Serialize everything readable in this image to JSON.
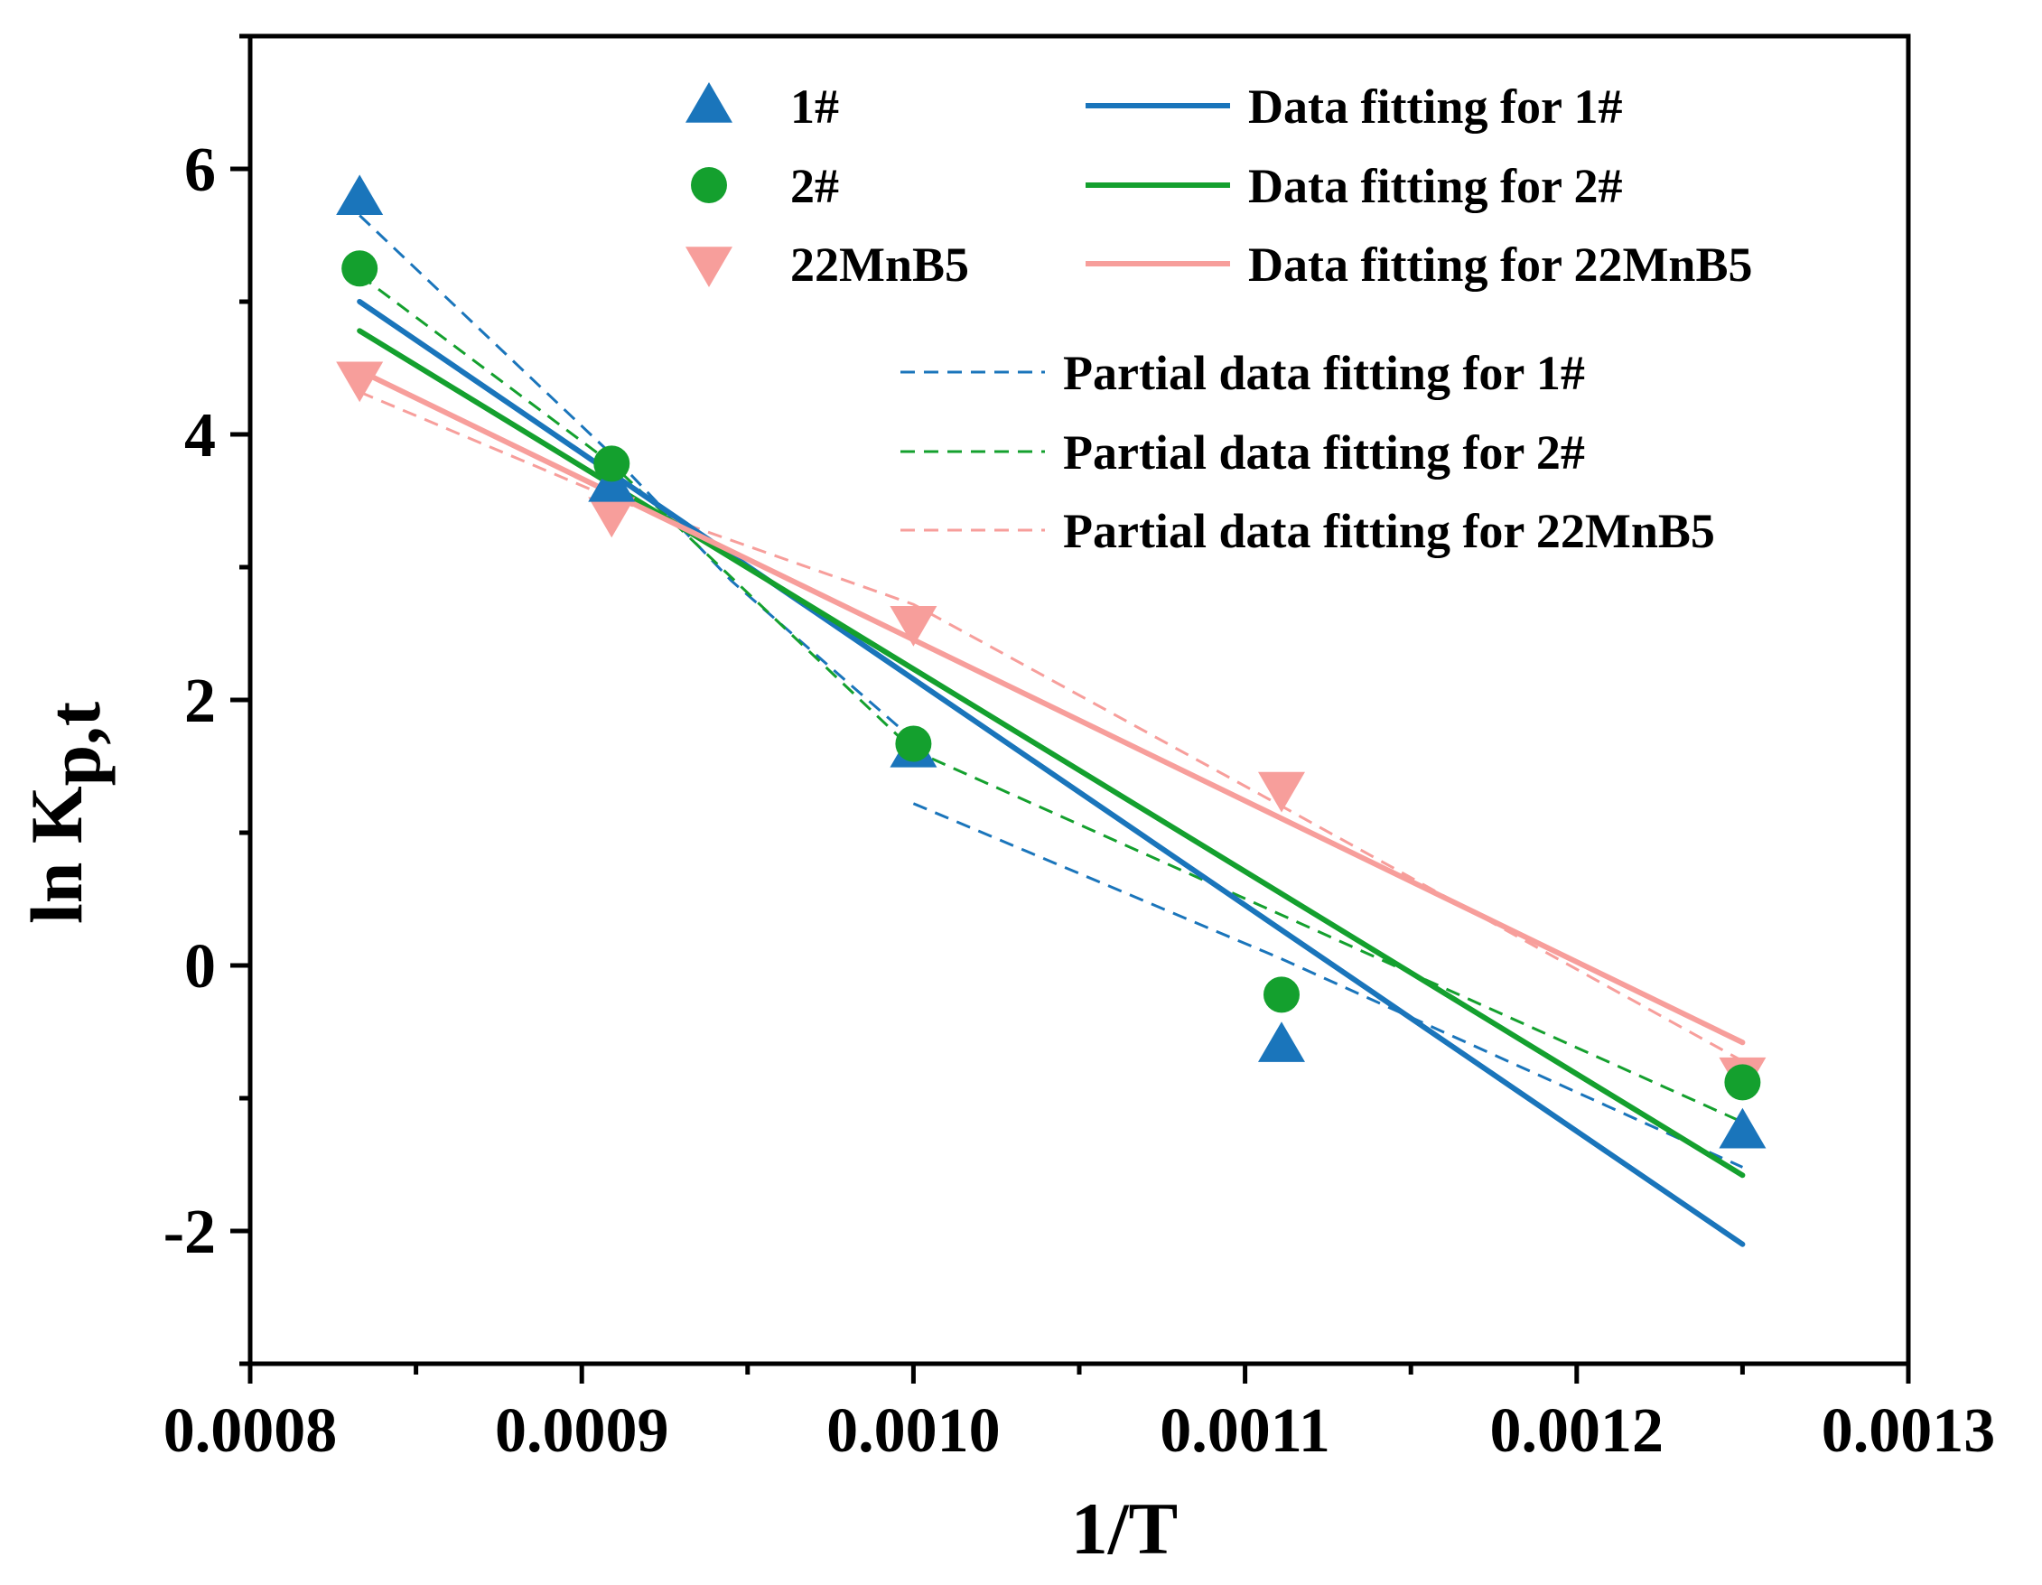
{
  "chart_data": {
    "type": "scatter",
    "title": "",
    "xlabel": "1/T",
    "ylabel_main": "ln K",
    "ylabel_sub": "p,t",
    "xlim": [
      0.0008,
      0.0013
    ],
    "ylim": [
      -3,
      7
    ],
    "x_ticks": [
      0.0008,
      0.0009,
      0.001,
      0.0011,
      0.0012,
      0.0013
    ],
    "x_tick_labels": [
      "0.0008",
      "0.0009",
      "0.0010",
      "0.0011",
      "0.0012",
      "0.0013"
    ],
    "y_ticks": [
      -2,
      0,
      2,
      4,
      6
    ],
    "y_tick_labels": [
      "-2",
      "0",
      "2",
      "4",
      "6"
    ],
    "colors": {
      "s1": "#1a75bb",
      "s2": "#14a02e",
      "s3": "#f79e9b"
    },
    "series": [
      {
        "name": "1#",
        "color_key": "s1",
        "marker": "triangle-up",
        "x": [
          0.000833,
          0.000909,
          0.001,
          0.001111,
          0.00125
        ],
        "y": [
          5.78,
          3.62,
          1.62,
          -0.6,
          -1.25
        ]
      },
      {
        "name": "2#",
        "color_key": "s2",
        "marker": "circle",
        "x": [
          0.000833,
          0.000909,
          0.001,
          0.001111,
          0.00125
        ],
        "y": [
          5.25,
          3.78,
          1.67,
          -0.22,
          -0.88
        ]
      },
      {
        "name": "22MnB5",
        "color_key": "s3",
        "marker": "triangle-down",
        "x": [
          0.000833,
          0.000909,
          0.001,
          0.001111,
          0.00125
        ],
        "y": [
          4.42,
          3.4,
          2.58,
          1.33,
          -0.82
        ]
      }
    ],
    "fits": [
      {
        "name": "Data fitting for 1#",
        "color_key": "s1",
        "style": "solid",
        "points": [
          [
            0.000833,
            5.0
          ],
          [
            0.00125,
            -2.1
          ]
        ]
      },
      {
        "name": "Data fitting for 2#",
        "color_key": "s2",
        "style": "solid",
        "points": [
          [
            0.000833,
            4.78
          ],
          [
            0.00125,
            -1.58
          ]
        ]
      },
      {
        "name": "Data fitting for 22MnB5",
        "color_key": "s3",
        "style": "solid",
        "points": [
          [
            0.000833,
            4.48
          ],
          [
            0.00125,
            -0.58
          ]
        ]
      }
    ],
    "partial_fits": [
      {
        "name": "Partial data fitting for 1#",
        "color_key": "s1",
        "style": "dashed",
        "segments": [
          [
            [
              0.000833,
              5.65
            ],
            [
              0.000909,
              3.85
            ],
            [
              0.000945,
              2.9
            ],
            [
              0.001,
              1.7
            ]
          ],
          [
            [
              0.001,
              1.22
            ],
            [
              0.001111,
              0.05
            ],
            [
              0.00125,
              -1.52
            ]
          ]
        ]
      },
      {
        "name": "Partial data fitting for 2#",
        "color_key": "s2",
        "style": "dashed",
        "segments": [
          [
            [
              0.000833,
              5.2
            ],
            [
              0.000909,
              3.78
            ],
            [
              0.001,
              1.62
            ],
            [
              0.001111,
              0.38
            ],
            [
              0.00125,
              -1.18
            ]
          ]
        ]
      },
      {
        "name": "Partial data fitting for 22MnB5",
        "color_key": "s3",
        "style": "dashed",
        "segments": [
          [
            [
              0.000833,
              4.32
            ],
            [
              0.000909,
              3.52
            ],
            [
              0.001,
              2.72
            ],
            [
              0.001111,
              1.2
            ],
            [
              0.00125,
              -0.72
            ]
          ]
        ]
      }
    ],
    "legend": {
      "placement": "top-right",
      "markers": [
        "1#",
        "2#",
        "22MnB5"
      ],
      "fits": [
        "Data fitting for 1#",
        "Data fitting for 2#",
        "Data fitting for 22MnB5"
      ],
      "partial_fits": [
        "Partial data fitting for 1#",
        "Partial data fitting for 2#",
        "Partial data fitting for 22MnB5"
      ]
    }
  }
}
